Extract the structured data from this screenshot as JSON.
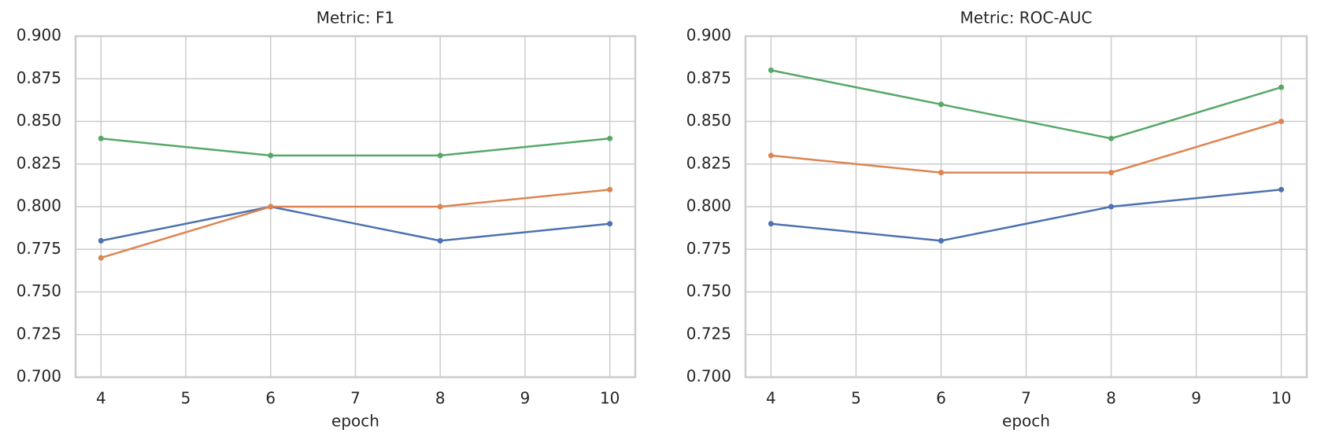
{
  "chart_data": [
    {
      "type": "line",
      "title": "Metric: F1",
      "x_label": "epoch",
      "x": [
        4,
        6,
        8,
        10
      ],
      "xlim": [
        3.7,
        10.3
      ],
      "xticks": [
        4,
        5,
        6,
        7,
        8,
        9,
        10
      ],
      "ylim": [
        0.7,
        0.9
      ],
      "yticks": [
        {
          "value": 0.7,
          "label": "0.700"
        },
        0.725,
        {
          "value": 0.75,
          "label": "0.750"
        },
        0.775,
        {
          "value": 0.8,
          "label": "0.800"
        },
        0.825,
        {
          "value": 0.85,
          "label": "0.850"
        },
        0.875,
        {
          "value": 0.9,
          "label": "0.900"
        }
      ],
      "grid": true,
      "series": [
        {
          "color": "#4c72b0",
          "values": [
            0.78,
            0.8,
            0.78,
            0.79
          ]
        },
        {
          "color": "#dd8452",
          "values": [
            0.77,
            0.8,
            0.8,
            0.81
          ]
        },
        {
          "color": "#55a868",
          "values": [
            0.84,
            0.83,
            0.83,
            0.84
          ]
        }
      ]
    },
    {
      "type": "line",
      "title": "Metric: ROC-AUC",
      "x_label": "epoch",
      "x": [
        4,
        6,
        8,
        10
      ],
      "xlim": [
        3.7,
        10.3
      ],
      "xticks": [
        4,
        5,
        6,
        7,
        8,
        9,
        10
      ],
      "ylim": [
        0.7,
        0.9
      ],
      "yticks": [
        {
          "value": 0.7,
          "label": "0.700"
        },
        0.725,
        {
          "value": 0.75,
          "label": "0.750"
        },
        0.775,
        {
          "value": 0.8,
          "label": "0.800"
        },
        0.825,
        {
          "value": 0.85,
          "label": "0.850"
        },
        0.875,
        {
          "value": 0.9,
          "label": "0.900"
        }
      ],
      "grid": true,
      "series": [
        {
          "color": "#4c72b0",
          "values": [
            0.79,
            0.78,
            0.8,
            0.81
          ]
        },
        {
          "color": "#dd8452",
          "values": [
            0.83,
            0.82,
            0.82,
            0.85
          ]
        },
        {
          "color": "#55a868",
          "values": [
            0.88,
            0.86,
            0.84,
            0.87
          ]
        }
      ]
    }
  ]
}
